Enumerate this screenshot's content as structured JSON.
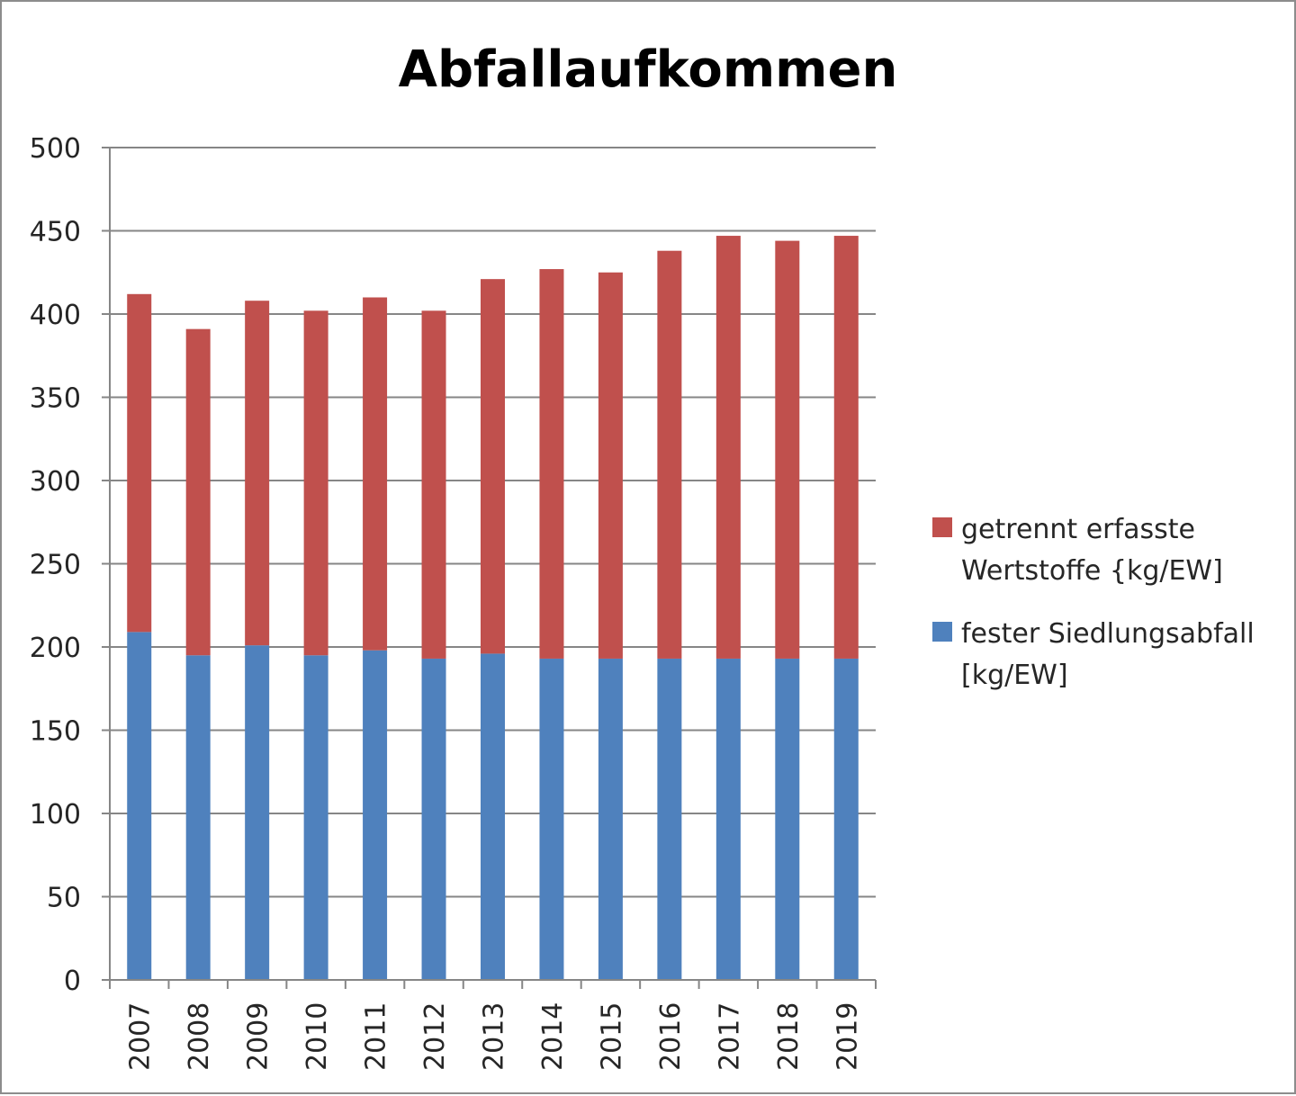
{
  "chart_data": {
    "type": "bar",
    "stacked": true,
    "title": "Abfallaufkommen",
    "xlabel": "",
    "ylabel": "",
    "categories": [
      "2007",
      "2008",
      "2009",
      "2010",
      "2011",
      "2012",
      "2013",
      "2014",
      "2015",
      "2016",
      "2017",
      "2018",
      "2019"
    ],
    "ylim": [
      0,
      500
    ],
    "yticks": [
      0,
      50,
      100,
      150,
      200,
      250,
      300,
      350,
      400,
      450,
      500
    ],
    "grid": true,
    "legend_position": "right",
    "series": [
      {
        "name": "fester Siedlungsabfall [kg/EW]",
        "legend_lines": [
          "fester Siedlungsabfall",
          "[kg/EW]"
        ],
        "color": "#4f81bd",
        "values": [
          209,
          195,
          201,
          195,
          198,
          193,
          196,
          193,
          193,
          193,
          193,
          193,
          193
        ]
      },
      {
        "name": "getrennt erfasste Wertstoffe {kg/EW]",
        "legend_lines": [
          "getrennt erfasste",
          "Wertstoffe {kg/EW]"
        ],
        "color": "#c0504d",
        "values": [
          203,
          196,
          207,
          207,
          212,
          209,
          225,
          234,
          232,
          245,
          254,
          251,
          254
        ]
      }
    ]
  }
}
